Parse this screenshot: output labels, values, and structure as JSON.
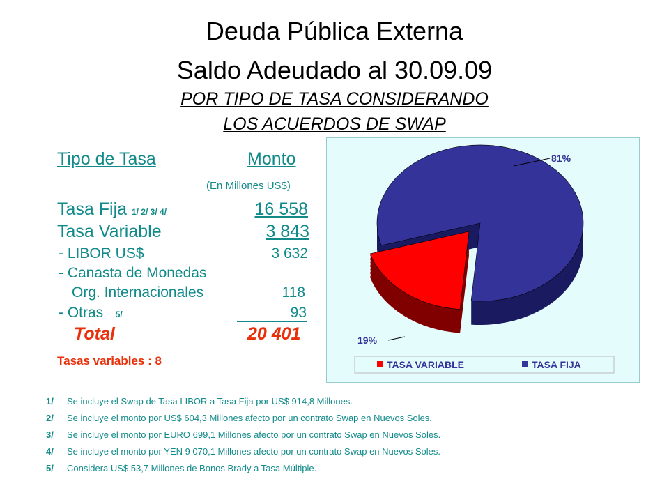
{
  "header": {
    "title1": "Deuda Pública Externa",
    "title2": "Saldo Adeudado al 30.09.09",
    "subtitle1": "POR TIPO DE TASA CONSIDERANDO",
    "subtitle2": "LOS ACUERDOS DE SWAP"
  },
  "table": {
    "col1": "Tipo de Tasa",
    "col2": "Monto",
    "units": "(En Millones US$)",
    "rows": [
      {
        "label": "Tasa Fija",
        "note": "1/  2/  3/  4/",
        "value": "16 558"
      },
      {
        "label": "Tasa Variable",
        "value": "3 843"
      },
      {
        "label": " - LIBOR US$",
        "value": "3 632"
      },
      {
        "label": " - Canasta de Monedas"
      },
      {
        "label": "Org. Internacionales",
        "value": "118"
      },
      {
        "label": " - Otras",
        "note": "5/",
        "value": "93"
      }
    ],
    "total_label": "Total",
    "total_value": "20 401",
    "vars_label": "Tasas variables :  8"
  },
  "notes": [
    {
      "n": "1/",
      "text": "Se incluye el Swap de Tasa LIBOR a Tasa Fija por US$ 914,8 Millones."
    },
    {
      "n": "2/",
      "text": "Se incluye el monto por US$ 604,3 Millones afecto por un contrato Swap en Nuevos Soles."
    },
    {
      "n": "3/",
      "text": "Se incluye el monto por EURO 699,1 Millones afecto por un contrato Swap en Nuevos Soles."
    },
    {
      "n": "4/",
      "text": "Se incluye el monto por YEN 9 070,1 Millones afecto por un contrato Swap en Nuevos Soles."
    },
    {
      "n": "5/",
      "text": "Considera US$ 53,7 Millones de Bonos Brady a Tasa Múltiple."
    }
  ],
  "chart_data": {
    "type": "pie",
    "categories": [
      "TASA VARIABLE",
      "TASA FIJA"
    ],
    "values": [
      19,
      81
    ],
    "labels": [
      "19%",
      "81%"
    ],
    "colors": [
      "#ff0000",
      "#333399"
    ],
    "side_colors": [
      "#800000",
      "#1a1a60"
    ],
    "legend": "bottom"
  }
}
